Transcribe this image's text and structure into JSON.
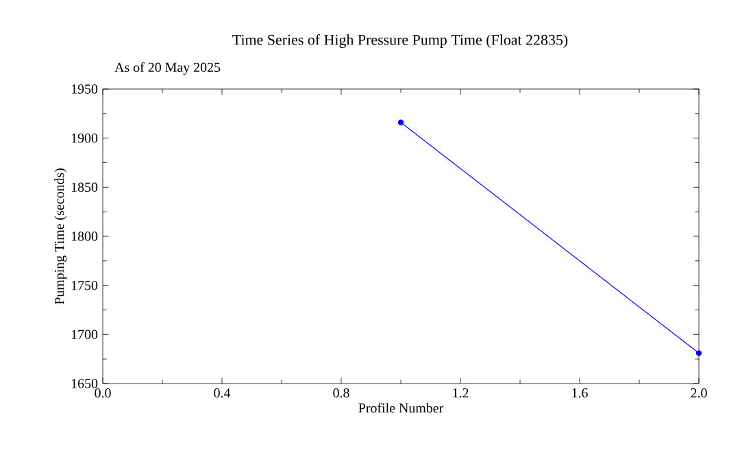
{
  "chart_data": {
    "type": "line",
    "title": "Time Series of High Pressure Pump Time (Float 22835)",
    "subtitle": "As of 20 May 2025",
    "xlabel": "Profile Number",
    "ylabel": "Pumping Time (seconds)",
    "x": [
      1,
      2
    ],
    "series": [
      {
        "color": "#0000ff",
        "values": [
          1916,
          1681
        ]
      }
    ],
    "xlim": [
      0,
      2
    ],
    "xticks": [
      {
        "value": 0,
        "label": "0.0"
      },
      {
        "value": 0.4,
        "label": "0.4"
      },
      {
        "value": 0.8,
        "label": "0.8"
      },
      {
        "value": 1.2,
        "label": "1.2"
      },
      {
        "value": 1.6,
        "label": "1.6"
      },
      {
        "value": 2,
        "label": "2.0"
      }
    ],
    "ylim": [
      1650,
      1950
    ],
    "yticks": [
      1650,
      1700,
      1750,
      1800,
      1850,
      1900,
      1950
    ],
    "marker": "circle",
    "line_style": "solid"
  }
}
